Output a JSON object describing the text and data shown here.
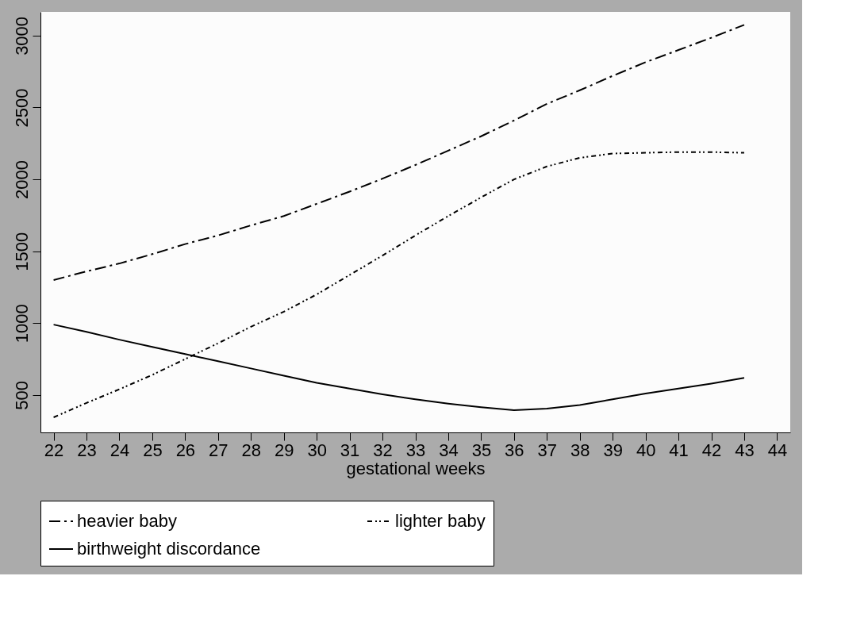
{
  "chart_data": {
    "type": "line",
    "xlabel": "gestational weeks",
    "x": [
      22,
      23,
      24,
      25,
      26,
      27,
      28,
      29,
      30,
      31,
      32,
      33,
      34,
      35,
      36,
      37,
      38,
      39,
      40,
      41,
      42,
      43
    ],
    "series": [
      {
        "name": "heavier baby",
        "color": "#000000",
        "line_style": "dashed",
        "values": [
          1300,
          1360,
          1415,
          1480,
          1550,
          1610,
          1680,
          1745,
          1830,
          1915,
          2005,
          2100,
          2200,
          2300,
          2410,
          2525,
          2620,
          2720,
          2815,
          2900,
          2985,
          3075
        ]
      },
      {
        "name": "lighter baby",
        "color": "#000000",
        "line_style": "dotted",
        "values": [
          345,
          445,
          540,
          640,
          750,
          860,
          975,
          1080,
          1200,
          1335,
          1470,
          1610,
          1745,
          1875,
          2000,
          2090,
          2150,
          2180,
          2185,
          2190,
          2190,
          2185
        ]
      },
      {
        "name": "birthweight discordance",
        "color": "#000000",
        "line_style": "solid",
        "values": [
          990,
          940,
          885,
          835,
          785,
          735,
          685,
          635,
          585,
          545,
          505,
          470,
          440,
          415,
          395,
          405,
          430,
          470,
          510,
          545,
          580,
          620
        ]
      }
    ],
    "xlim": [
      21.6,
      44.4
    ],
    "xticks": [
      22,
      23,
      24,
      25,
      26,
      27,
      28,
      29,
      30,
      31,
      32,
      33,
      34,
      35,
      36,
      37,
      38,
      39,
      40,
      41,
      42,
      43,
      44
    ],
    "ylim": [
      240,
      3165
    ],
    "yticks": [
      500,
      1000,
      1500,
      2000,
      2500,
      3000
    ],
    "grid": false,
    "legend": "bottom"
  }
}
